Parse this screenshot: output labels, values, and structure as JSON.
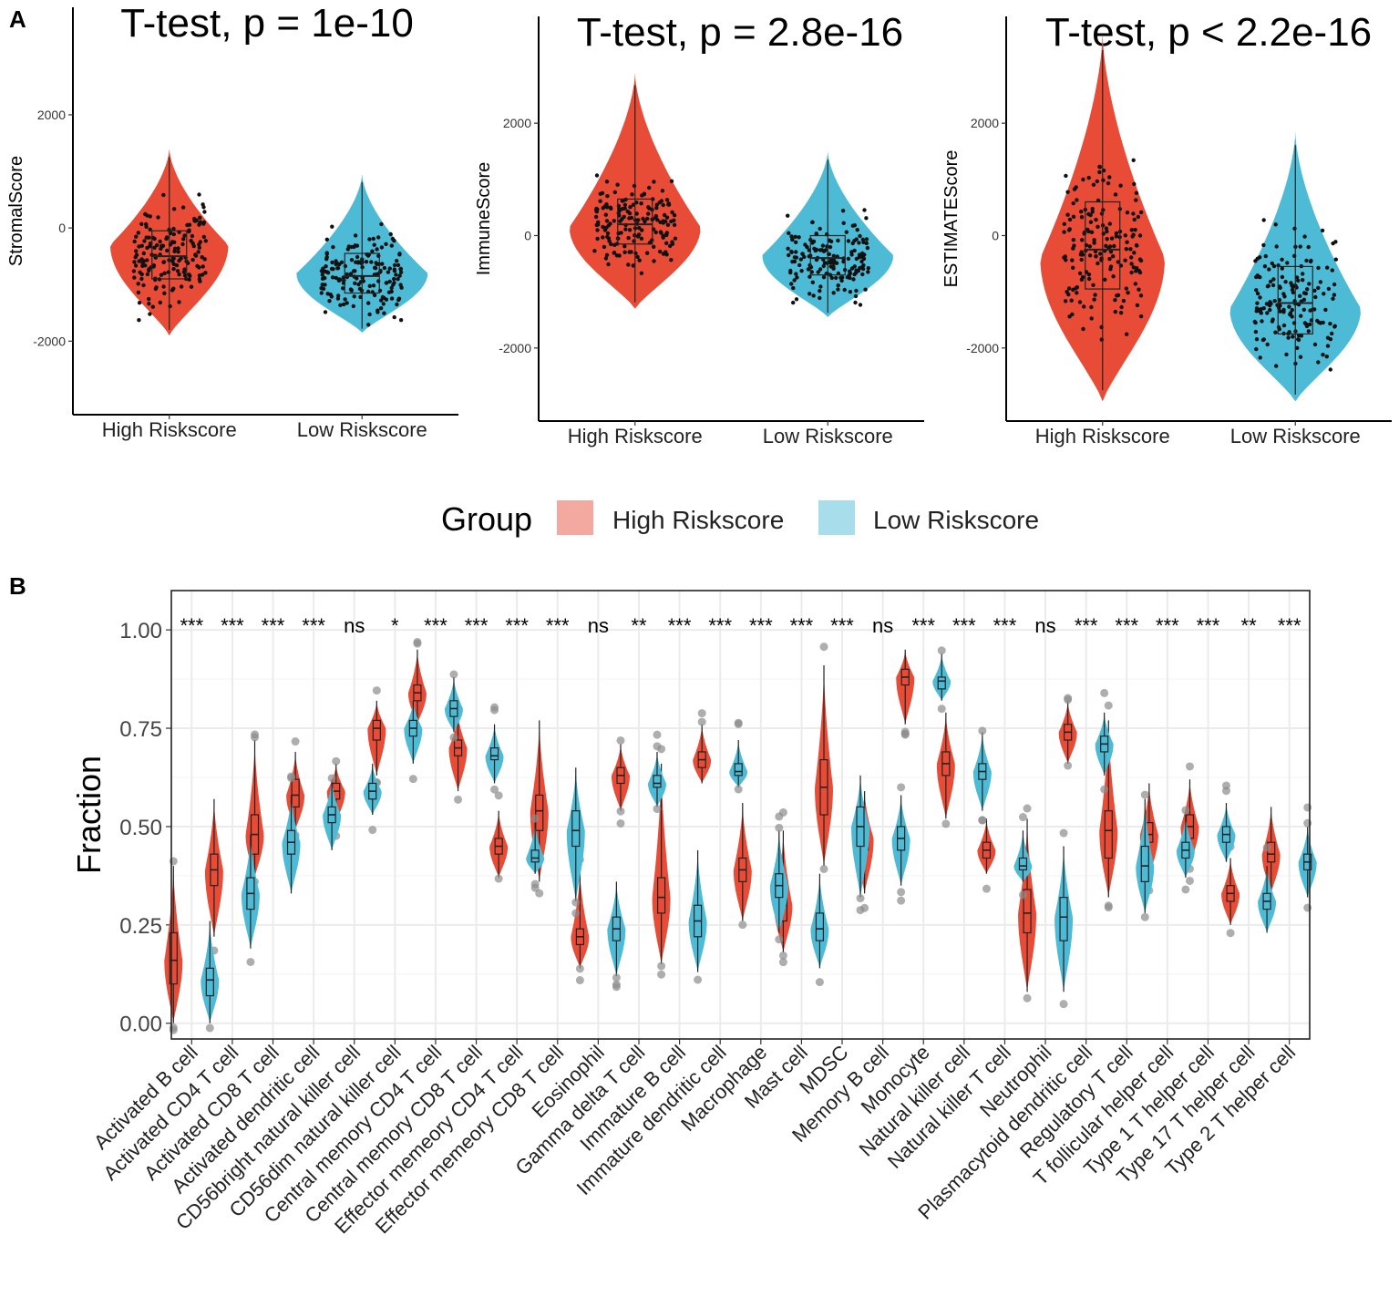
{
  "colors": {
    "high": "#E84B36",
    "low": "#4DBBD5",
    "high_light": "#F3A8A0",
    "low_light": "#A8DDEB",
    "grid": "#EBEBEB"
  },
  "panels": {
    "a_label": "A",
    "b_label": "B"
  },
  "chart_data": [
    {
      "type": "violin",
      "title": "T-test, p = 1e-10",
      "ylabel": "StromalScore",
      "categories": [
        "High Riskscore",
        "Low Riskscore"
      ],
      "yticks": [
        "-2000",
        "0",
        "2000"
      ],
      "ylim": [
        -3300,
        3900
      ],
      "groups": [
        {
          "name": "High Riskscore",
          "min": -1900,
          "max": 1400,
          "q1": -900,
          "median": -500,
          "q3": -50,
          "peak": -300,
          "width": 0.9
        },
        {
          "name": "Low Riskscore",
          "min": -1850,
          "max": 950,
          "q1": -1150,
          "median": -850,
          "q3": -450,
          "peak": -800,
          "width": 1.0
        }
      ]
    },
    {
      "type": "violin",
      "title": "T-test, p = 2.8e-16",
      "ylabel": "ImmuneScore",
      "categories": [
        "High Riskscore",
        "Low Riskscore"
      ],
      "yticks": [
        "-2000",
        "0",
        "2000"
      ],
      "ylim": [
        -3300,
        3900
      ],
      "groups": [
        {
          "name": "High Riskscore",
          "min": -1300,
          "max": 2900,
          "q1": -150,
          "median": 200,
          "q3": 650,
          "peak": 150,
          "width": 1.0
        },
        {
          "name": "Low Riskscore",
          "min": -1450,
          "max": 1500,
          "q1": -700,
          "median": -400,
          "q3": 0,
          "peak": -350,
          "width": 1.0
        }
      ]
    },
    {
      "type": "violin",
      "title": "T-test, p < 2.2e-16",
      "ylabel": "ESTIMATEScore",
      "categories": [
        "High Riskscore",
        "Low Riskscore"
      ],
      "yticks": [
        "-2000",
        "0",
        "2000"
      ],
      "ylim": [
        -3300,
        3900
      ],
      "groups": [
        {
          "name": "High Riskscore",
          "min": -2950,
          "max": 3600,
          "q1": -950,
          "median": -250,
          "q3": 600,
          "peak": -400,
          "width": 0.95
        },
        {
          "name": "Low Riskscore",
          "min": -2950,
          "max": 1850,
          "q1": -1750,
          "median": -1200,
          "q3": -550,
          "peak": -1300,
          "width": 1.0
        }
      ]
    },
    {
      "type": "violin",
      "ylabel": "Fraction",
      "ylim": [
        -0.04,
        1.1
      ],
      "yticks": [
        "0.00",
        "0.25",
        "0.50",
        "0.75",
        "1.00"
      ],
      "legend": {
        "title": "Group",
        "entries": [
          "High Riskscore",
          "Low Riskscore"
        ],
        "position": "top"
      },
      "categories": [
        "Activated B cell",
        "Activated CD4 T cell",
        "Activated CD8 T cell",
        "Activated dendritic cell",
        "CD56bright natural killer cell",
        "CD56dim natural killer cell",
        "Central memory CD4 T cell",
        "Central memory CD8 T cell",
        "Effector memeory CD4 T cell",
        "Effector memeory CD8 T cell",
        "Eosinophil",
        "Gamma delta T cell",
        "Immature  B cell",
        "Immature dendritic cell",
        "Macrophage",
        "Mast cell",
        "MDSC",
        "Memory B cell",
        "Monocyte",
        "Natural killer cell",
        "Natural killer T cell",
        "Neutrophil",
        "Plasmacytoid dendritic cell",
        "Regulatory T cell",
        "T follicular helper cell",
        "Type 1 T helper cell",
        "Type 17 T helper cell",
        "Type 2 T helper cell"
      ],
      "significance": [
        "***",
        "***",
        "***",
        "***",
        "ns",
        "*",
        "***",
        "***",
        "***",
        "***",
        "ns",
        "**",
        "***",
        "***",
        "***",
        "***",
        "***",
        "ns",
        "***",
        "***",
        "***",
        "ns",
        "***",
        "***",
        "***",
        "***",
        "**",
        "***"
      ],
      "series": [
        {
          "name": "High Riskscore",
          "medians": [
            0.16,
            0.39,
            0.48,
            0.58,
            0.59,
            0.75,
            0.84,
            0.7,
            0.45,
            0.54,
            0.22,
            0.63,
            0.32,
            0.67,
            0.39,
            0.3,
            0.6,
            0.47,
            0.88,
            0.66,
            0.44,
            0.28,
            0.74,
            0.49,
            0.48,
            0.5,
            0.33,
            0.43
          ],
          "q1": [
            0.1,
            0.35,
            0.43,
            0.55,
            0.57,
            0.72,
            0.82,
            0.68,
            0.43,
            0.49,
            0.2,
            0.61,
            0.28,
            0.65,
            0.36,
            0.26,
            0.53,
            0.44,
            0.86,
            0.63,
            0.42,
            0.23,
            0.72,
            0.42,
            0.46,
            0.47,
            0.31,
            0.41
          ],
          "q3": [
            0.23,
            0.43,
            0.53,
            0.62,
            0.61,
            0.77,
            0.86,
            0.72,
            0.47,
            0.58,
            0.24,
            0.65,
            0.37,
            0.69,
            0.42,
            0.34,
            0.67,
            0.5,
            0.9,
            0.69,
            0.46,
            0.34,
            0.76,
            0.54,
            0.51,
            0.53,
            0.35,
            0.46
          ],
          "min": [
            0.0,
            0.22,
            0.37,
            0.49,
            0.51,
            0.63,
            0.76,
            0.59,
            0.37,
            0.36,
            0.14,
            0.54,
            0.15,
            0.61,
            0.26,
            0.18,
            0.4,
            0.33,
            0.76,
            0.52,
            0.38,
            0.08,
            0.66,
            0.32,
            0.37,
            0.4,
            0.25,
            0.33
          ],
          "max": [
            0.4,
            0.57,
            0.72,
            0.69,
            0.66,
            0.82,
            0.95,
            0.79,
            0.54,
            0.77,
            0.39,
            0.71,
            0.66,
            0.76,
            0.56,
            0.49,
            0.91,
            0.59,
            0.95,
            0.79,
            0.52,
            0.52,
            0.82,
            0.77,
            0.61,
            0.62,
            0.42,
            0.55
          ]
        },
        {
          "name": "Low Riskscore",
          "medians": [
            0.11,
            0.33,
            0.46,
            0.53,
            0.59,
            0.75,
            0.8,
            0.68,
            0.42,
            0.49,
            0.24,
            0.61,
            0.26,
            0.64,
            0.35,
            0.24,
            0.5,
            0.47,
            0.87,
            0.64,
            0.4,
            0.27,
            0.71,
            0.4,
            0.44,
            0.48,
            0.31,
            0.41
          ],
          "q1": [
            0.07,
            0.29,
            0.43,
            0.51,
            0.57,
            0.73,
            0.78,
            0.67,
            0.41,
            0.45,
            0.21,
            0.6,
            0.22,
            0.63,
            0.32,
            0.21,
            0.45,
            0.44,
            0.85,
            0.62,
            0.39,
            0.21,
            0.69,
            0.36,
            0.42,
            0.46,
            0.29,
            0.39
          ],
          "q3": [
            0.14,
            0.37,
            0.49,
            0.55,
            0.61,
            0.77,
            0.82,
            0.7,
            0.44,
            0.54,
            0.27,
            0.63,
            0.3,
            0.66,
            0.38,
            0.28,
            0.55,
            0.5,
            0.88,
            0.66,
            0.42,
            0.32,
            0.73,
            0.45,
            0.46,
            0.5,
            0.33,
            0.43
          ],
          "min": [
            0.0,
            0.19,
            0.33,
            0.44,
            0.53,
            0.66,
            0.74,
            0.61,
            0.38,
            0.31,
            0.12,
            0.55,
            0.13,
            0.6,
            0.23,
            0.14,
            0.32,
            0.35,
            0.82,
            0.54,
            0.36,
            0.08,
            0.63,
            0.28,
            0.37,
            0.41,
            0.23,
            0.32
          ],
          "max": [
            0.26,
            0.48,
            0.58,
            0.62,
            0.66,
            0.82,
            0.88,
            0.76,
            0.51,
            0.65,
            0.36,
            0.69,
            0.44,
            0.72,
            0.49,
            0.38,
            0.63,
            0.58,
            0.94,
            0.74,
            0.49,
            0.45,
            0.79,
            0.57,
            0.53,
            0.56,
            0.4,
            0.5
          ]
        }
      ]
    }
  ]
}
